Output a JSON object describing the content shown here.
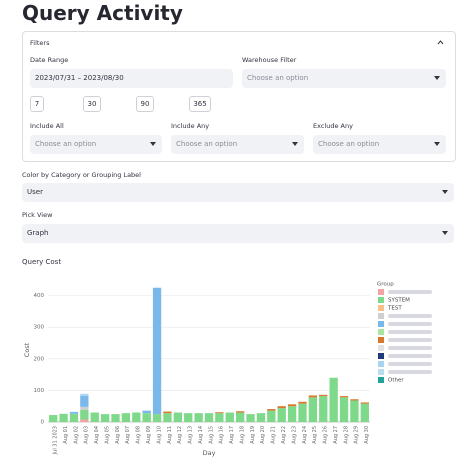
{
  "title": "Query Activity",
  "filters": {
    "label": "Filters",
    "date_range": {
      "label": "Date Range",
      "value": "2023/07/31 – 2023/08/30"
    },
    "warehouse_filter": {
      "label": "Warehouse Filter",
      "placeholder": "Choose an option"
    },
    "quick_ranges": [
      "7",
      "30",
      "90",
      "365"
    ],
    "include_all": {
      "label": "Include All",
      "placeholder": "Choose an option"
    },
    "include_any": {
      "label": "Include Any",
      "placeholder": "Choose an option"
    },
    "exclude_any": {
      "label": "Exclude Any",
      "placeholder": "Choose an option"
    }
  },
  "color_by": {
    "label": "Color by Category or Grouping Label",
    "value": "User"
  },
  "pick_view": {
    "label": "Pick View",
    "value": "Graph"
  },
  "chart_data": {
    "type": "bar",
    "stacked": true,
    "title": "Query Cost",
    "x_label": "Day",
    "y_label": "Cost",
    "legend_title": "Group",
    "grid": true,
    "ylim": [
      0,
      440
    ],
    "yticks": [
      0,
      100,
      200,
      300,
      400
    ],
    "categories": [
      "Jul 31 2023",
      "Aug 01",
      "Aug 02",
      "Aug 03",
      "Aug 04",
      "Aug 05",
      "Aug 06",
      "Aug 07",
      "Aug 08",
      "Aug 09",
      "Aug 10",
      "Aug 11",
      "Aug 12",
      "Aug 13",
      "Aug 14",
      "Aug 15",
      "Aug 16",
      "Aug 17",
      "Aug 18",
      "Aug 19",
      "Aug 20",
      "Aug 21",
      "Aug 22",
      "Aug 23",
      "Aug 24",
      "Aug 25",
      "Aug 26",
      "Aug 27",
      "Aug 28",
      "Aug 29",
      "Aug 30"
    ],
    "series": [
      {
        "name": null,
        "color": "#f4a3a3",
        "values": [
          0,
          0,
          0,
          8,
          0,
          0,
          0,
          0,
          0,
          0,
          0,
          0,
          0,
          0,
          0,
          0,
          0,
          0,
          0,
          0,
          0,
          0,
          0,
          0,
          0,
          0,
          0,
          0,
          0,
          0,
          0
        ]
      },
      {
        "name": "SYSTEM",
        "color": "#7fd98b",
        "values": [
          22,
          26,
          26,
          30,
          30,
          25,
          25,
          28,
          30,
          28,
          25,
          28,
          30,
          28,
          28,
          28,
          28,
          30,
          30,
          25,
          28,
          36,
          44,
          50,
          58,
          78,
          82,
          140,
          78,
          68,
          58
        ]
      },
      {
        "name": "TEST",
        "color": "#f9c08a",
        "values": [
          0,
          0,
          0,
          0,
          0,
          0,
          0,
          0,
          0,
          0,
          0,
          0,
          0,
          0,
          0,
          0,
          0,
          0,
          0,
          0,
          0,
          0,
          0,
          0,
          0,
          0,
          0,
          0,
          0,
          0,
          0
        ]
      },
      {
        "name": null,
        "color": "#cfcfcf",
        "values": [
          0,
          0,
          0,
          10,
          0,
          0,
          0,
          0,
          0,
          0,
          0,
          0,
          0,
          0,
          0,
          0,
          0,
          0,
          0,
          0,
          0,
          0,
          0,
          0,
          0,
          0,
          0,
          0,
          0,
          0,
          0
        ]
      },
      {
        "name": null,
        "color": "#7ab8ec",
        "values": [
          0,
          0,
          6,
          35,
          0,
          0,
          0,
          0,
          0,
          8,
          400,
          0,
          0,
          0,
          0,
          0,
          0,
          0,
          0,
          0,
          0,
          0,
          0,
          0,
          0,
          0,
          0,
          0,
          0,
          0,
          0
        ]
      },
      {
        "name": null,
        "color": "#a9e4a0",
        "values": [
          0,
          0,
          0,
          0,
          0,
          0,
          0,
          0,
          0,
          0,
          0,
          0,
          0,
          0,
          0,
          0,
          0,
          0,
          0,
          0,
          0,
          0,
          0,
          0,
          0,
          0,
          0,
          0,
          0,
          0,
          0
        ]
      },
      {
        "name": null,
        "color": "#d9782d",
        "values": [
          0,
          0,
          0,
          0,
          0,
          0,
          0,
          0,
          0,
          0,
          0,
          5,
          0,
          0,
          0,
          0,
          3,
          0,
          4,
          0,
          0,
          5,
          6,
          6,
          6,
          6,
          4,
          0,
          4,
          4,
          4
        ]
      },
      {
        "name": null,
        "color": "#e2e2e2",
        "values": [
          0,
          0,
          0,
          0,
          0,
          0,
          0,
          0,
          0,
          0,
          0,
          0,
          0,
          0,
          0,
          0,
          0,
          0,
          0,
          0,
          0,
          0,
          0,
          0,
          0,
          0,
          0,
          0,
          0,
          0,
          0
        ]
      },
      {
        "name": null,
        "color": "#1f3a7a",
        "values": [
          0,
          0,
          0,
          0,
          0,
          0,
          0,
          0,
          0,
          0,
          0,
          0,
          0,
          0,
          0,
          0,
          0,
          0,
          0,
          0,
          0,
          0,
          0,
          0,
          0,
          0,
          0,
          0,
          0,
          0,
          0
        ]
      },
      {
        "name": null,
        "color": "#a8d4f4",
        "values": [
          0,
          0,
          0,
          6,
          0,
          0,
          0,
          0,
          0,
          0,
          0,
          0,
          0,
          0,
          0,
          0,
          0,
          0,
          0,
          0,
          0,
          0,
          0,
          0,
          0,
          0,
          0,
          0,
          0,
          0,
          0
        ]
      },
      {
        "name": null,
        "color": "#b9dcf0",
        "values": [
          0,
          0,
          0,
          0,
          0,
          0,
          0,
          0,
          0,
          0,
          0,
          0,
          0,
          0,
          0,
          0,
          0,
          0,
          0,
          0,
          0,
          0,
          0,
          0,
          0,
          0,
          0,
          0,
          0,
          0,
          0
        ]
      },
      {
        "name": "Other",
        "color": "#22a39a",
        "values": [
          0,
          0,
          0,
          0,
          0,
          0,
          0,
          0,
          0,
          0,
          0,
          0,
          0,
          0,
          0,
          0,
          0,
          0,
          0,
          0,
          0,
          0,
          0,
          0,
          0,
          0,
          0,
          0,
          0,
          0,
          0
        ]
      }
    ]
  }
}
